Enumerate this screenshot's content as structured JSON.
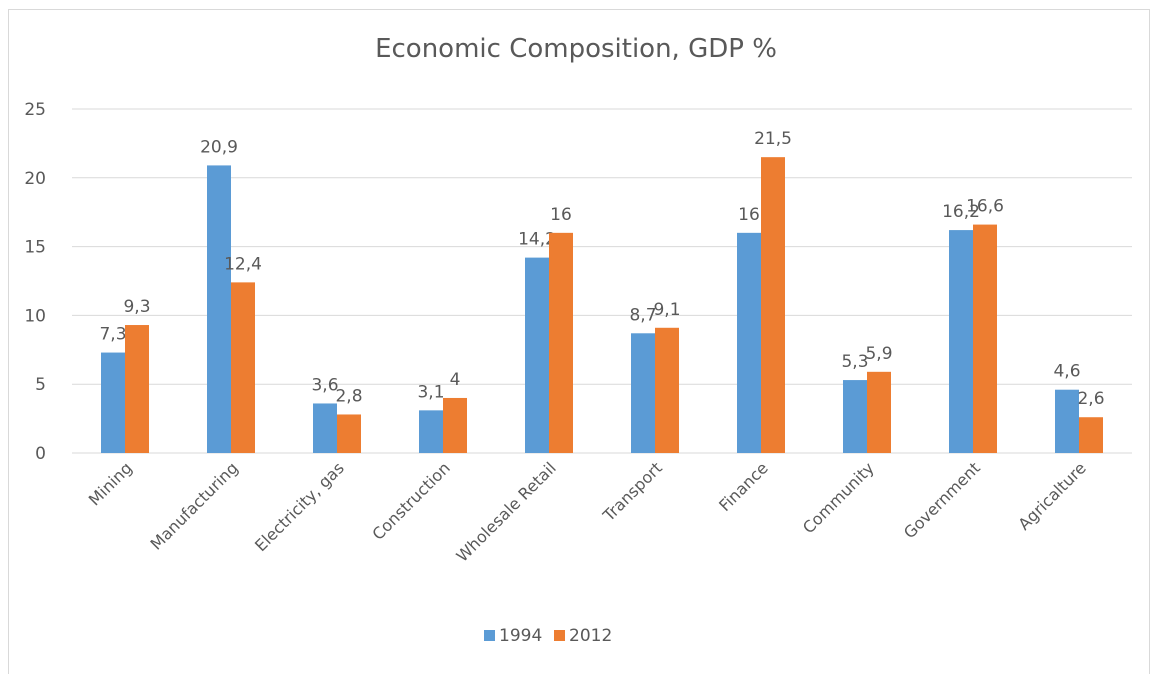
{
  "chart_data": {
    "type": "bar",
    "title": "Economic Composition, GDP %",
    "categories": [
      "Mining",
      "Manufacturing",
      "Electricity, gas",
      "Construction",
      "Wholesale Retail",
      "Transport",
      "Finance",
      "Community",
      "Government",
      "Agricalture"
    ],
    "series": [
      {
        "name": "1994",
        "values": [
          7.3,
          20.9,
          3.6,
          3.1,
          14.2,
          8.7,
          16,
          5.3,
          16.2,
          4.6
        ],
        "labels": [
          "7,3",
          "20,9",
          "3,6",
          "3,1",
          "14,2",
          "8,7",
          "16",
          "5,3",
          "16,2",
          "4,6"
        ],
        "color": "#5b9bd5"
      },
      {
        "name": "2012",
        "values": [
          9.3,
          12.4,
          2.8,
          4,
          16,
          9.1,
          21.5,
          5.9,
          16.6,
          2.6
        ],
        "labels": [
          "9,3",
          "12,4",
          "2,8",
          "4",
          "16",
          "9,1",
          "21,5",
          "5,9",
          "16,6",
          "2,6"
        ],
        "color": "#ed7d31"
      }
    ],
    "ylim": [
      0,
      25
    ],
    "yticks": [
      0,
      5,
      10,
      15,
      20,
      25
    ],
    "grid": true,
    "legend": "bottom",
    "gridline_color": "#d9d9d9"
  }
}
